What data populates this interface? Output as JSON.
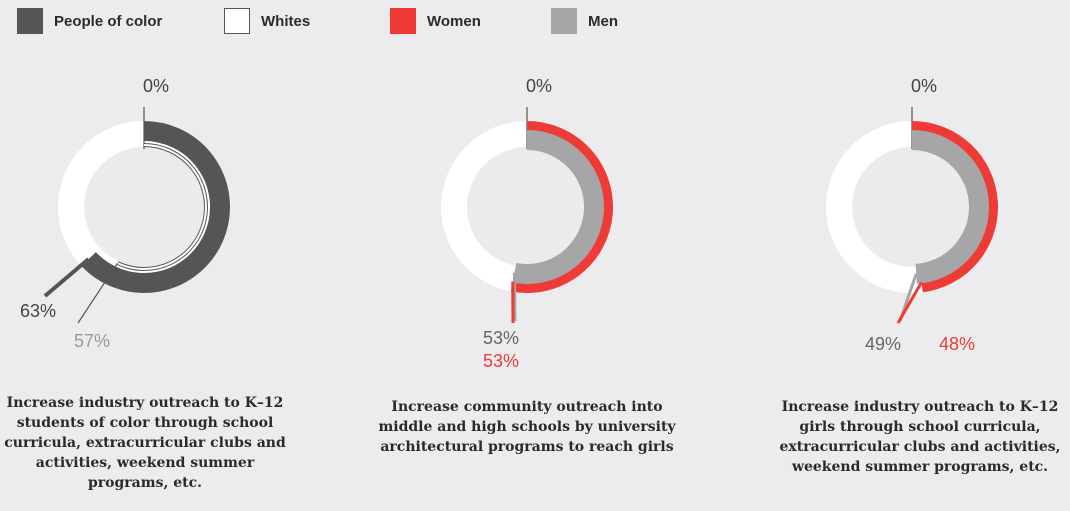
{
  "legend": [
    {
      "label": "People of color",
      "color": "#555555"
    },
    {
      "label": "Whites",
      "color": "#ffffff"
    },
    {
      "label": "Women",
      "color": "#ee3b36"
    },
    {
      "label": "Men",
      "color": "#a6a6a8"
    }
  ],
  "chart_data": [
    {
      "type": "radial-bar",
      "zero_label": "0%",
      "series": [
        {
          "name": "People of color",
          "value": 63,
          "label": "63%",
          "color": "#555555"
        },
        {
          "name": "Whites",
          "value": 57,
          "label": "57%",
          "color": "#ffffff"
        }
      ],
      "caption": "Increase industry outreach to K–12 students of color through school curricula, extracurricular clubs and activities, weekend summer programs, etc."
    },
    {
      "type": "radial-bar",
      "zero_label": "0%",
      "series": [
        {
          "name": "Women",
          "value": 53,
          "label": "53%",
          "color": "#ee3b36"
        },
        {
          "name": "Men",
          "value": 53,
          "label": "53%",
          "color": "#a6a6a8"
        }
      ],
      "caption": "Increase community outreach into middle and high schools by university architectural programs to reach girls"
    },
    {
      "type": "radial-bar",
      "zero_label": "0%",
      "series": [
        {
          "name": "Women",
          "value": 48,
          "label": "48%",
          "color": "#ee3b36"
        },
        {
          "name": "Men",
          "value": 49,
          "label": "49%",
          "color": "#a6a6a8"
        }
      ],
      "caption": "Increase industry outreach to K–12 girls through school curricula, extracurricular clubs and activities, weekend summer programs, etc."
    }
  ]
}
